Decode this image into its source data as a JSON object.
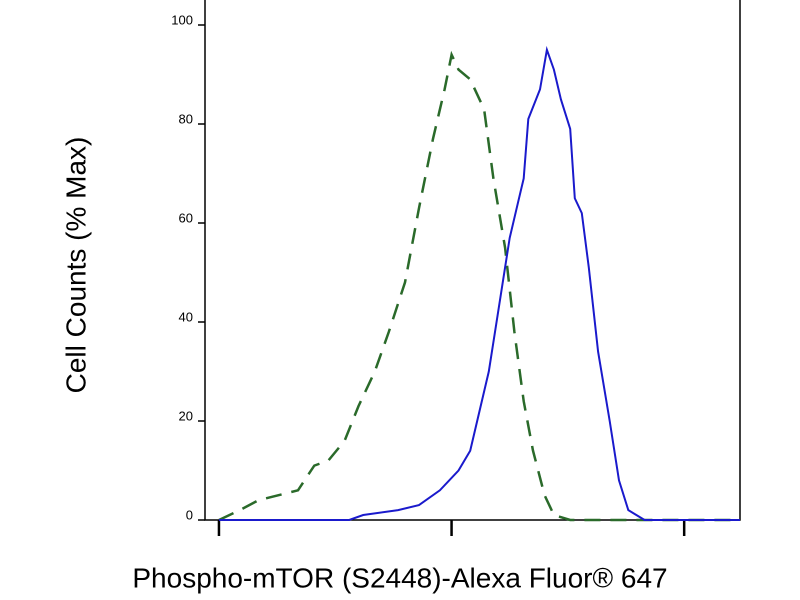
{
  "chart_data": {
    "type": "line",
    "xlabel": "Phospho-mTOR (S2448)-Alexa Fluor® 647",
    "ylabel": "Cell Counts (% Max)",
    "log_x": true,
    "xlim": [
      -0.06,
      2.24
    ],
    "xticks": [
      0,
      1,
      2
    ],
    "ylim": [
      0,
      100
    ],
    "yticks": [
      0,
      20,
      40,
      60,
      80,
      100
    ],
    "series": [
      {
        "color": "#2a6a2a",
        "dashed": true,
        "x": [
          0,
          0.09,
          0.17,
          0.34,
          0.41,
          0.47,
          0.54,
          0.6,
          0.67,
          0.73,
          0.8,
          0.86,
          0.92,
          0.97,
          1.0,
          1.03,
          1.08,
          1.14,
          1.18,
          1.23,
          1.27,
          1.31,
          1.35,
          1.4,
          1.44,
          1.51,
          2.24
        ],
        "values": [
          0,
          2,
          4,
          6,
          11,
          12,
          16,
          23,
          30,
          38,
          48,
          63,
          77,
          87,
          94,
          91,
          89,
          83,
          69,
          55,
          38,
          24,
          14,
          5,
          1,
          0,
          0
        ]
      },
      {
        "color": "#1a1acc",
        "dashed": false,
        "x": [
          0,
          0.34,
          0.56,
          0.62,
          0.77,
          0.86,
          0.95,
          1.03,
          1.08,
          1.12,
          1.16,
          1.2,
          1.25,
          1.29,
          1.31,
          1.33,
          1.38,
          1.41,
          1.44,
          1.47,
          1.51,
          1.53,
          1.56,
          1.59,
          1.63,
          1.68,
          1.72,
          1.76,
          1.83,
          2.24
        ],
        "values": [
          0,
          0,
          0,
          1,
          2,
          3,
          6,
          10,
          14,
          22,
          30,
          42,
          57,
          65,
          69,
          81,
          87,
          95,
          91,
          85,
          79,
          65,
          62,
          51,
          34,
          20,
          8,
          2,
          0,
          0
        ]
      }
    ]
  }
}
